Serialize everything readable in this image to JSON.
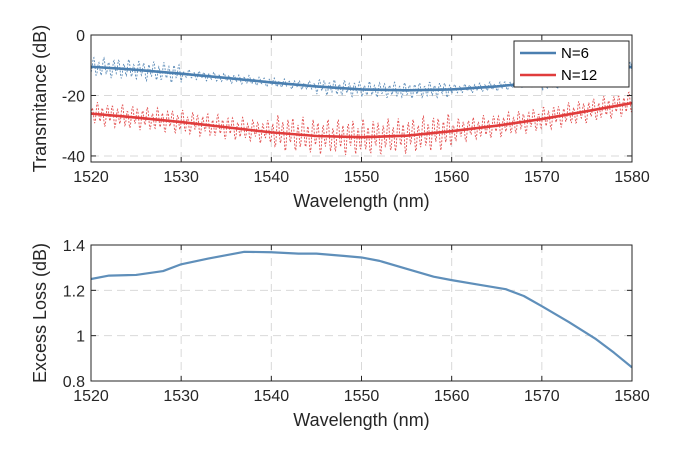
{
  "chart_data": [
    {
      "type": "line",
      "xlabel": "Wavelength (nm)",
      "ylabel": "Transmitance (dB)",
      "xlim": [
        1520,
        1580
      ],
      "ylim": [
        -42,
        0
      ],
      "xticks": [
        "1520",
        "1530",
        "1540",
        "1550",
        "1560",
        "1570",
        "1580"
      ],
      "yticks": [
        "0",
        "-20",
        "-40"
      ],
      "grid": true,
      "legend_position": "top-right",
      "series": [
        {
          "name": "N=6",
          "color": "#4a7fb0",
          "x": [
            1520,
            1525,
            1530,
            1535,
            1540,
            1545,
            1550,
            1555,
            1560,
            1565,
            1570,
            1575,
            1580
          ],
          "values": [
            -10.5,
            -11.5,
            -12.8,
            -14.2,
            -15.7,
            -17.0,
            -18.0,
            -18.3,
            -18.0,
            -17.0,
            -15.5,
            -13.2,
            -10.5
          ]
        },
        {
          "name": "N=12",
          "color": "#e03c3c",
          "x": [
            1520,
            1525,
            1530,
            1535,
            1540,
            1545,
            1550,
            1555,
            1560,
            1565,
            1570,
            1575,
            1580
          ],
          "values": [
            -26.0,
            -27.3,
            -28.8,
            -30.5,
            -32.2,
            -33.4,
            -33.8,
            -33.3,
            -31.8,
            -30.0,
            -27.8,
            -25.2,
            -22.5
          ]
        }
      ]
    },
    {
      "type": "line",
      "xlabel": "Wavelength (nm)",
      "ylabel": "Excess Loss (dB)",
      "xlim": [
        1520,
        1580
      ],
      "ylim": [
        0.8,
        1.4
      ],
      "xticks": [
        "1520",
        "1530",
        "1540",
        "1550",
        "1560",
        "1570",
        "1580"
      ],
      "yticks": [
        "1.4",
        "1.2",
        "1",
        "0.8"
      ],
      "grid": true,
      "series": [
        {
          "color": "#5f8fba",
          "x": [
            1520,
            1522,
            1525,
            1528,
            1530,
            1533,
            1535,
            1537,
            1540,
            1543,
            1545,
            1548,
            1550,
            1552,
            1555,
            1558,
            1560,
            1563,
            1566,
            1568,
            1570,
            1573,
            1576,
            1578,
            1580
          ],
          "values": [
            1.25,
            1.265,
            1.268,
            1.285,
            1.315,
            1.34,
            1.355,
            1.37,
            1.368,
            1.362,
            1.362,
            1.352,
            1.345,
            1.33,
            1.295,
            1.26,
            1.245,
            1.225,
            1.205,
            1.175,
            1.13,
            1.06,
            0.985,
            0.925,
            0.86
          ]
        }
      ]
    }
  ]
}
